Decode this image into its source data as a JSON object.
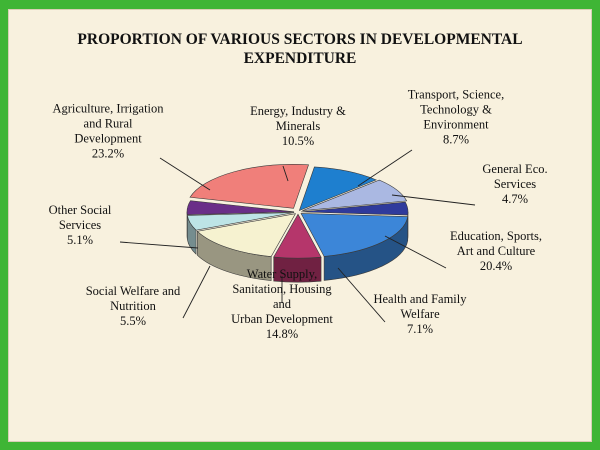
{
  "colors": {
    "frame": "#3fb535",
    "panel": "#f8f1de"
  },
  "chart_data": {
    "type": "pie",
    "style": "3d-exploded",
    "title": "PROPORTION OF VARIOUS SECTORS IN DEVELOPMENTAL\nEXPENDITURE",
    "legend": "none",
    "slices": [
      {
        "name": "Energy, Industry & Minerals",
        "label": "Energy, Industry &\nMinerals",
        "value": 10.5,
        "value_label": "10.5%",
        "color": "#1e7fcf"
      },
      {
        "name": "Transport, Science, Technology & Environment",
        "label": "Transport, Science,\nTechnology &\nEnvironment",
        "value": 8.7,
        "value_label": "8.7%",
        "color": "#aab8e2"
      },
      {
        "name": "General Eco. Services",
        "label": "General Eco.\nServices",
        "value": 4.7,
        "value_label": "4.7%",
        "color": "#2f3a9c"
      },
      {
        "name": "Education, Sports, Art and Culture",
        "label": "Education, Sports,\nArt and Culture",
        "value": 20.4,
        "value_label": "20.4%",
        "color": "#3c86d8"
      },
      {
        "name": "Health and Family Welfare",
        "label": "Health and Family\nWelfare",
        "value": 7.1,
        "value_label": "7.1%",
        "color": "#b5366b"
      },
      {
        "name": "Water Supply, Sanitation, Housing and Urban Development",
        "label": "Water Supply,\nSanitation, Housing\nand\nUrban Development",
        "value": 14.8,
        "value_label": "14.8%",
        "color": "#f6f2d0"
      },
      {
        "name": "Social Welfare and Nutrition",
        "label": "Social Welfare and\nNutrition",
        "value": 5.5,
        "value_label": "5.5%",
        "color": "#bde4e6"
      },
      {
        "name": "Other Social Services",
        "label": "Other Social\nServices",
        "value": 5.1,
        "value_label": "5.1%",
        "color": "#6a2e88"
      },
      {
        "name": "Agriculture, Irrigation and Rural Development",
        "label": "Agriculture, Irrigation\nand Rural\nDevelopment",
        "value": 23.2,
        "value_label": "23.2%",
        "color": "#f07f7a"
      }
    ]
  }
}
